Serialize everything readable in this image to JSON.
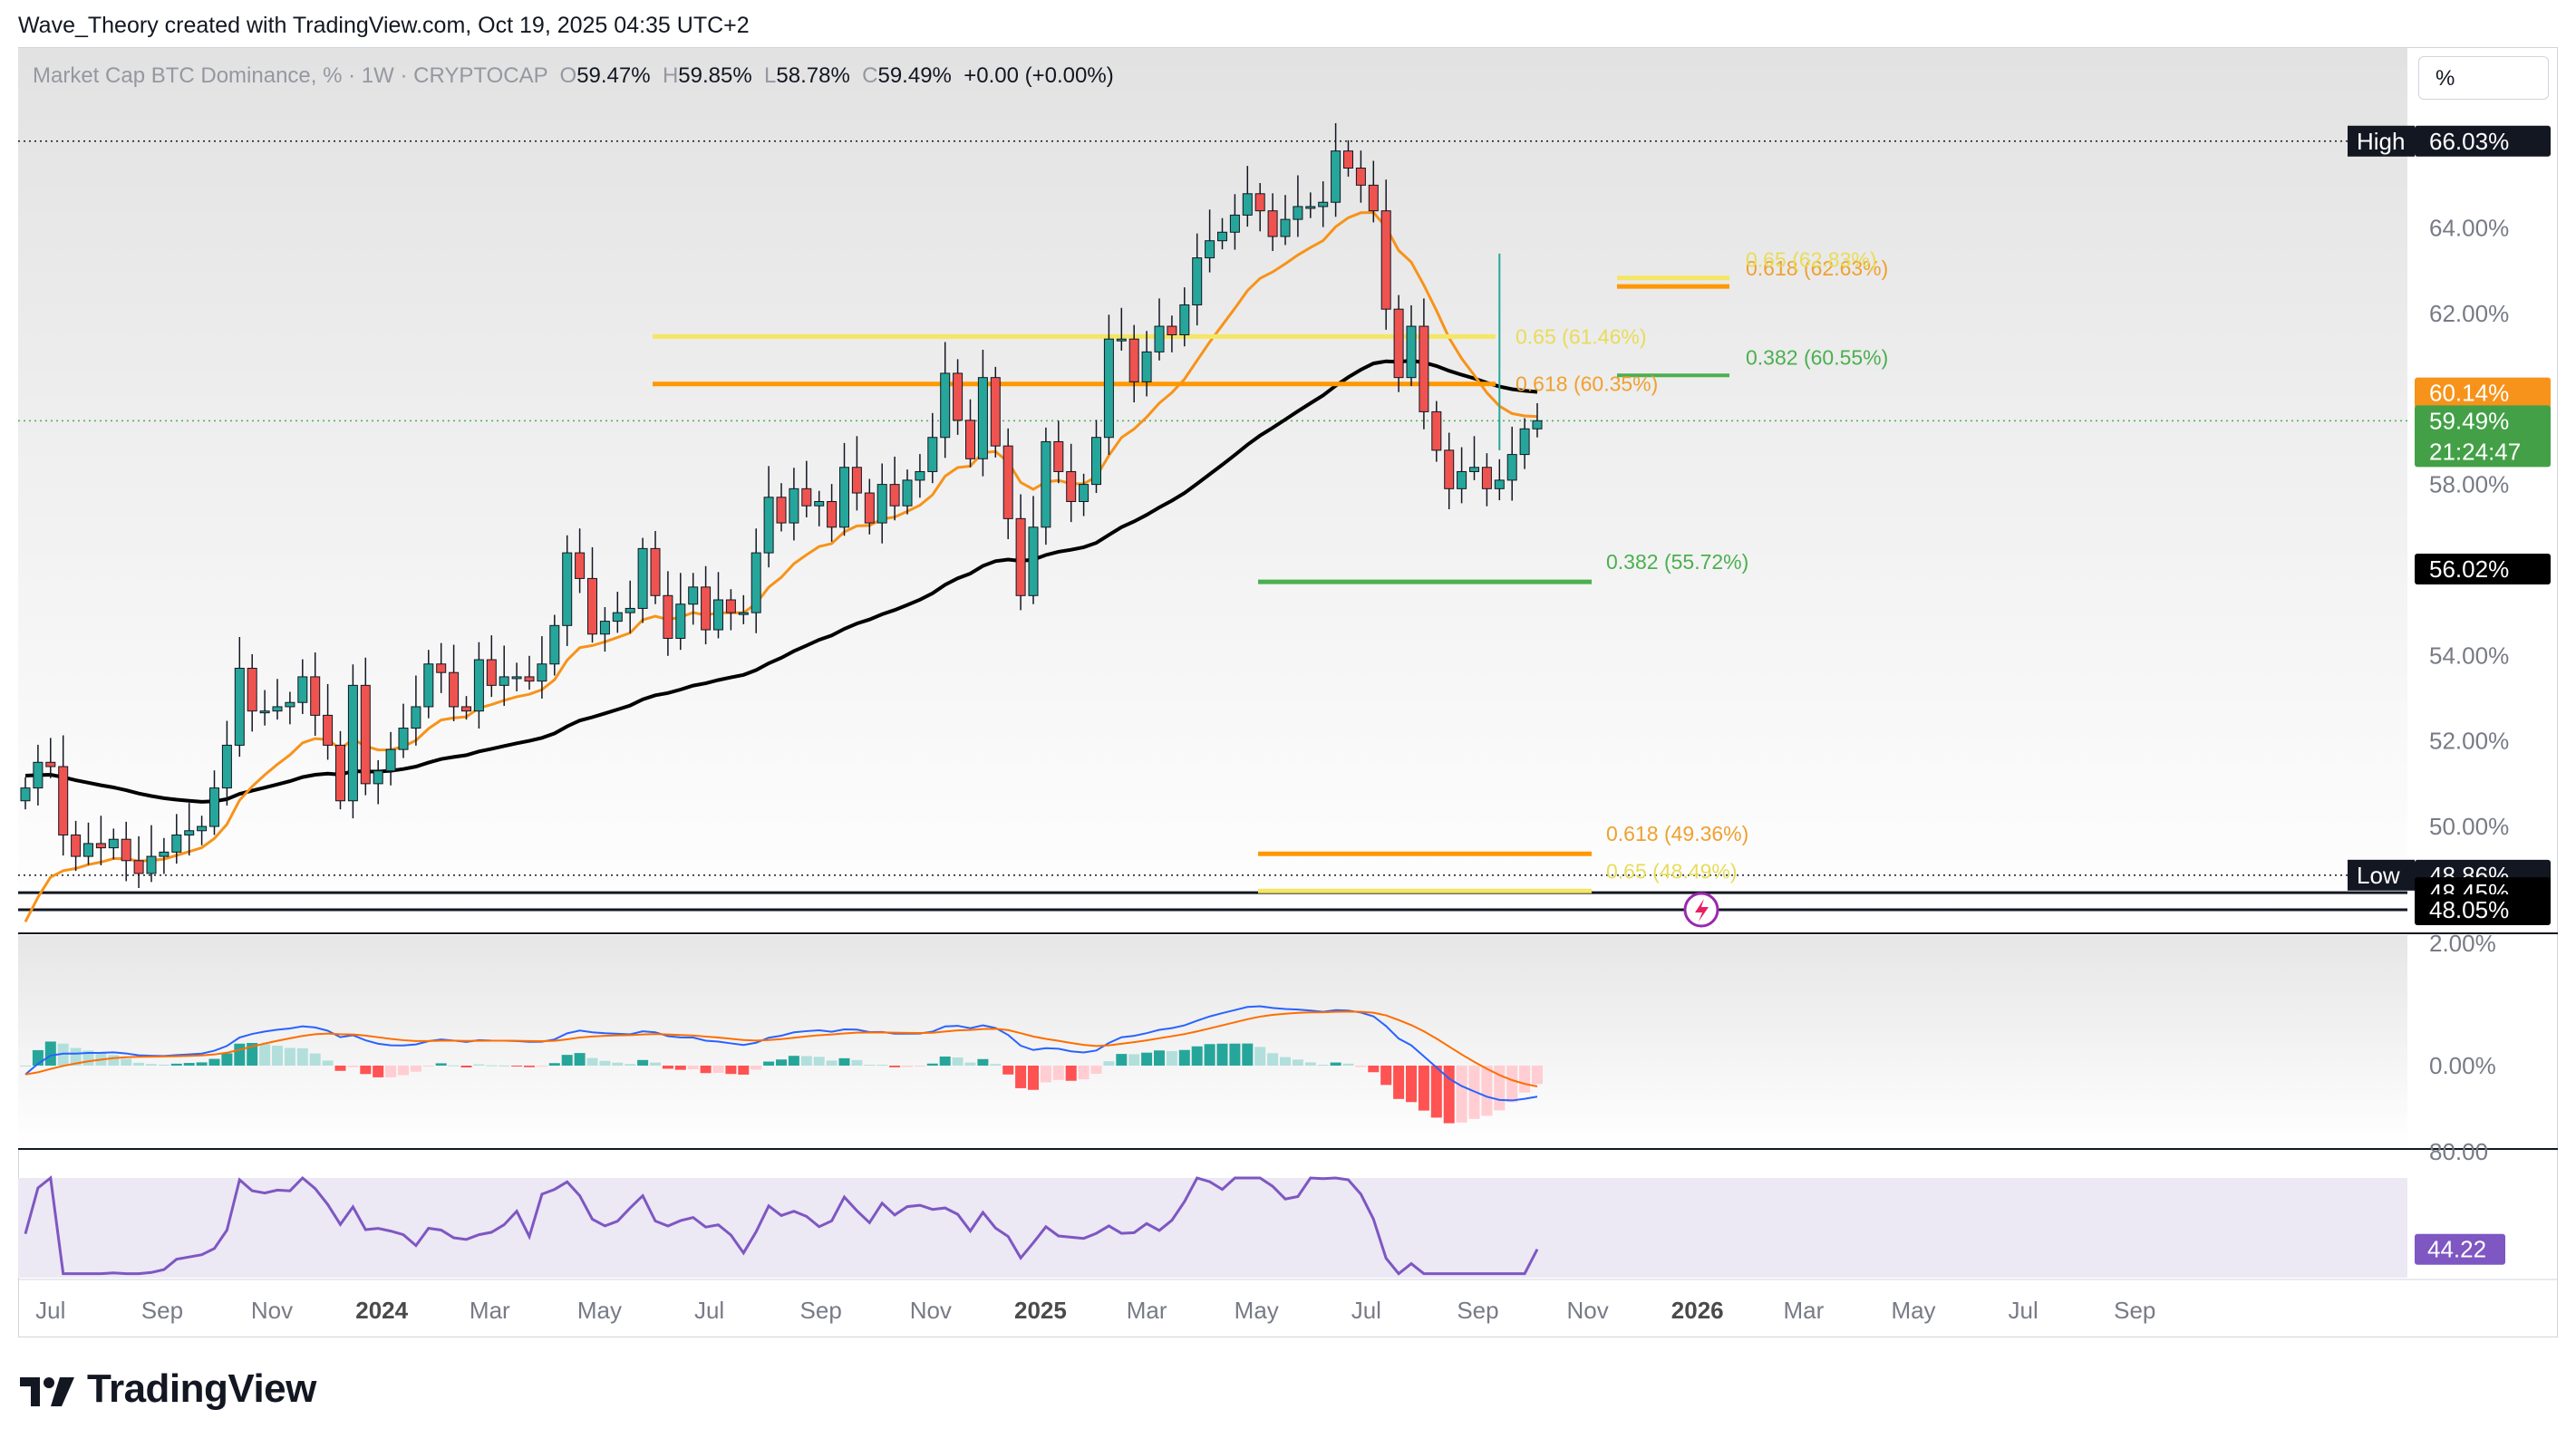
{
  "header": {
    "text": "Wave_Theory created with TradingView.com, Oct 19, 2025 04:35 UTC+2"
  },
  "legend": {
    "symbol": "Market Cap BTC Dominance, % · 1W · CRYPTOCAP",
    "o_label": "O",
    "o": "59.47%",
    "h_label": "H",
    "h": "59.85%",
    "l_label": "L",
    "l": "58.78%",
    "c_label": "C",
    "c": "59.49%",
    "change": "+0.00 (+0.00%)"
  },
  "unit_selector": "%",
  "brand": "TradingView",
  "colors": {
    "up": "#26a69a",
    "down": "#ef5350",
    "ema_fast": "#f7931a",
    "ema_slow": "#000000",
    "fib_yellow": "#f5e663",
    "fib_orange": "#ff9800",
    "fib_green": "#4caf50",
    "macd": "#2962ff",
    "signal": "#ff6d00",
    "rsi": "#7e57c2"
  },
  "chart_data": {
    "type": "candlestick",
    "interval": "1W",
    "ylim": [
      47.5,
      67.0
    ],
    "y_ticks": [
      "64.00%",
      "62.00%",
      "58.00%",
      "54.00%",
      "52.00%",
      "50.00%"
    ],
    "y_tick_values": [
      64,
      62,
      58,
      54,
      52,
      50
    ],
    "x_ticks": [
      {
        "label": "Jul",
        "date": "2023-07-01",
        "bold": false
      },
      {
        "label": "Sep",
        "date": "2023-09-01",
        "bold": false
      },
      {
        "label": "Nov",
        "date": "2023-11-01",
        "bold": false
      },
      {
        "label": "2024",
        "date": "2024-01-01",
        "bold": true
      },
      {
        "label": "Mar",
        "date": "2024-03-01",
        "bold": false
      },
      {
        "label": "May",
        "date": "2024-05-01",
        "bold": false
      },
      {
        "label": "Jul",
        "date": "2024-07-01",
        "bold": false
      },
      {
        "label": "Sep",
        "date": "2024-09-01",
        "bold": false
      },
      {
        "label": "Nov",
        "date": "2024-11-01",
        "bold": false
      },
      {
        "label": "2025",
        "date": "2025-01-01",
        "bold": true
      },
      {
        "label": "Mar",
        "date": "2025-03-01",
        "bold": false
      },
      {
        "label": "May",
        "date": "2025-05-01",
        "bold": false
      },
      {
        "label": "Jul",
        "date": "2025-07-01",
        "bold": false
      },
      {
        "label": "Sep",
        "date": "2025-09-01",
        "bold": false
      },
      {
        "label": "Nov",
        "date": "2025-11-01",
        "bold": false
      },
      {
        "label": "2026",
        "date": "2026-01-01",
        "bold": true
      },
      {
        "label": "Mar",
        "date": "2026-03-01",
        "bold": false
      },
      {
        "label": "May",
        "date": "2026-05-01",
        "bold": false
      },
      {
        "label": "Jul",
        "date": "2026-07-01",
        "bold": false
      },
      {
        "label": "Sep",
        "date": "2026-09-01",
        "bold": false
      }
    ],
    "closes": [
      50.9,
      51.5,
      51.4,
      49.8,
      49.3,
      49.6,
      49.5,
      49.7,
      49.2,
      48.9,
      49.3,
      49.4,
      49.8,
      49.9,
      50.0,
      50.9,
      51.9,
      53.7,
      52.7,
      52.7,
      52.8,
      52.9,
      53.5,
      52.6,
      51.9,
      50.6,
      53.3,
      51.0,
      51.3,
      51.8,
      52.3,
      52.8,
      53.8,
      53.6,
      52.8,
      52.7,
      53.9,
      53.3,
      53.5,
      53.5,
      53.4,
      53.8,
      54.7,
      56.4,
      55.8,
      54.5,
      54.8,
      55.0,
      55.1,
      56.5,
      55.4,
      54.4,
      55.2,
      55.6,
      54.6,
      55.3,
      55.0,
      55.0,
      56.4,
      57.7,
      57.1,
      57.9,
      57.5,
      57.6,
      57.0,
      58.4,
      57.8,
      57.1,
      58.0,
      57.5,
      58.1,
      58.3,
      59.1,
      60.6,
      59.5,
      58.6,
      60.5,
      58.9,
      57.2,
      55.4,
      57.0,
      59.0,
      58.3,
      57.6,
      58.0,
      59.1,
      61.4,
      61.4,
      60.4,
      61.1,
      61.7,
      61.5,
      62.2,
      63.3,
      63.7,
      63.9,
      64.3,
      64.8,
      64.4,
      63.8,
      64.2,
      64.5,
      64.5,
      64.6,
      65.8,
      65.4,
      65.0,
      64.4,
      62.1,
      60.5,
      61.7,
      59.7,
      58.8,
      57.9,
      58.3,
      58.4,
      57.9,
      58.1,
      58.7,
      59.3,
      59.49
    ],
    "highs_note": "wick peaks are drawn from closes",
    "ema_fast_end": 60.14,
    "ema_slow_end": 56.02,
    "price_levels": [
      {
        "label": "High",
        "value": "66.03%",
        "y": 66.03
      },
      {
        "label": "",
        "value": "60.14%",
        "y": 60.14,
        "role": "ema-fast"
      },
      {
        "label": "",
        "value": "59.49%",
        "y": 59.49,
        "role": "last",
        "countdown": "21:24:47"
      },
      {
        "label": "",
        "value": "56.02%",
        "y": 56.02,
        "role": "ema-slow"
      },
      {
        "label": "Low",
        "value": "48.86%",
        "y": 48.86
      },
      {
        "label": "",
        "value": "48.45%",
        "y": 48.45
      },
      {
        "label": "",
        "value": "48.05%",
        "y": 48.05
      }
    ],
    "fib_annotations": [
      {
        "text": "0.618 (62.63%)",
        "y": 62.63,
        "color": "orange"
      },
      {
        "text": "0.65 (62.83%)",
        "y": 62.83,
        "color": "yellow"
      },
      {
        "text": "0.382 (60.55%)",
        "y": 60.55,
        "color": "green"
      },
      {
        "text": "0.65 (61.46%)",
        "y": 61.46,
        "color": "yellow"
      },
      {
        "text": "0.618 (60.35%)",
        "y": 60.35,
        "color": "orange"
      },
      {
        "text": "0.382 (55.72%)",
        "y": 55.72,
        "color": "green"
      },
      {
        "text": "0.618 (49.36%)",
        "y": 49.36,
        "color": "orange"
      },
      {
        "text": "0.65 (48.49%)",
        "y": 48.49,
        "color": "yellow"
      }
    ],
    "macd": {
      "ticks": [
        "2.00%",
        "0.00%"
      ],
      "tick_values": [
        2.0,
        0.0
      ]
    },
    "rsi": {
      "ticks": [
        "80.00"
      ],
      "last": "44.22",
      "last_value": 44.22
    }
  }
}
